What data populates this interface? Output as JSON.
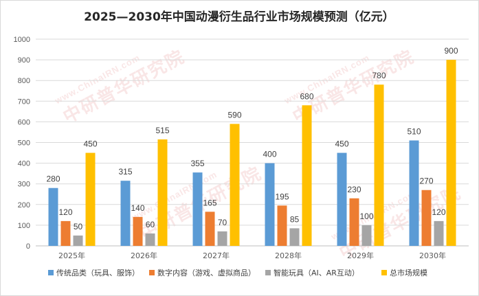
{
  "chart_data": {
    "type": "bar",
    "title": "2025—2030年中国动漫衍生品行业市场规模预测（亿元）",
    "categories": [
      "2025年",
      "2026年",
      "2027年",
      "2028年",
      "2029年",
      "2030年"
    ],
    "series": [
      {
        "name": "传统品类（玩具、服饰）",
        "values": [
          280,
          315,
          355,
          400,
          450,
          510
        ],
        "color": "#5b9bd5"
      },
      {
        "name": "数字内容（游戏、虚拟商品）",
        "values": [
          120,
          140,
          165,
          195,
          230,
          270
        ],
        "color": "#ed7d31"
      },
      {
        "name": "智能玩具（AI、AR互动）",
        "values": [
          50,
          60,
          70,
          85,
          100,
          120
        ],
        "color": "#a5a5a5"
      },
      {
        "name": "总市场规模",
        "values": [
          450,
          515,
          590,
          680,
          780,
          900
        ],
        "color": "#ffc000"
      }
    ],
    "yticks": [
      0,
      100,
      200,
      300,
      400,
      500,
      600,
      700,
      800,
      900,
      1000
    ],
    "ylim": [
      0,
      1000
    ],
    "grid": true,
    "legend_position": "bottom"
  },
  "watermark": {
    "url_text": "www.ChinaIRN.com",
    "name_text": "中研普华研究院"
  }
}
